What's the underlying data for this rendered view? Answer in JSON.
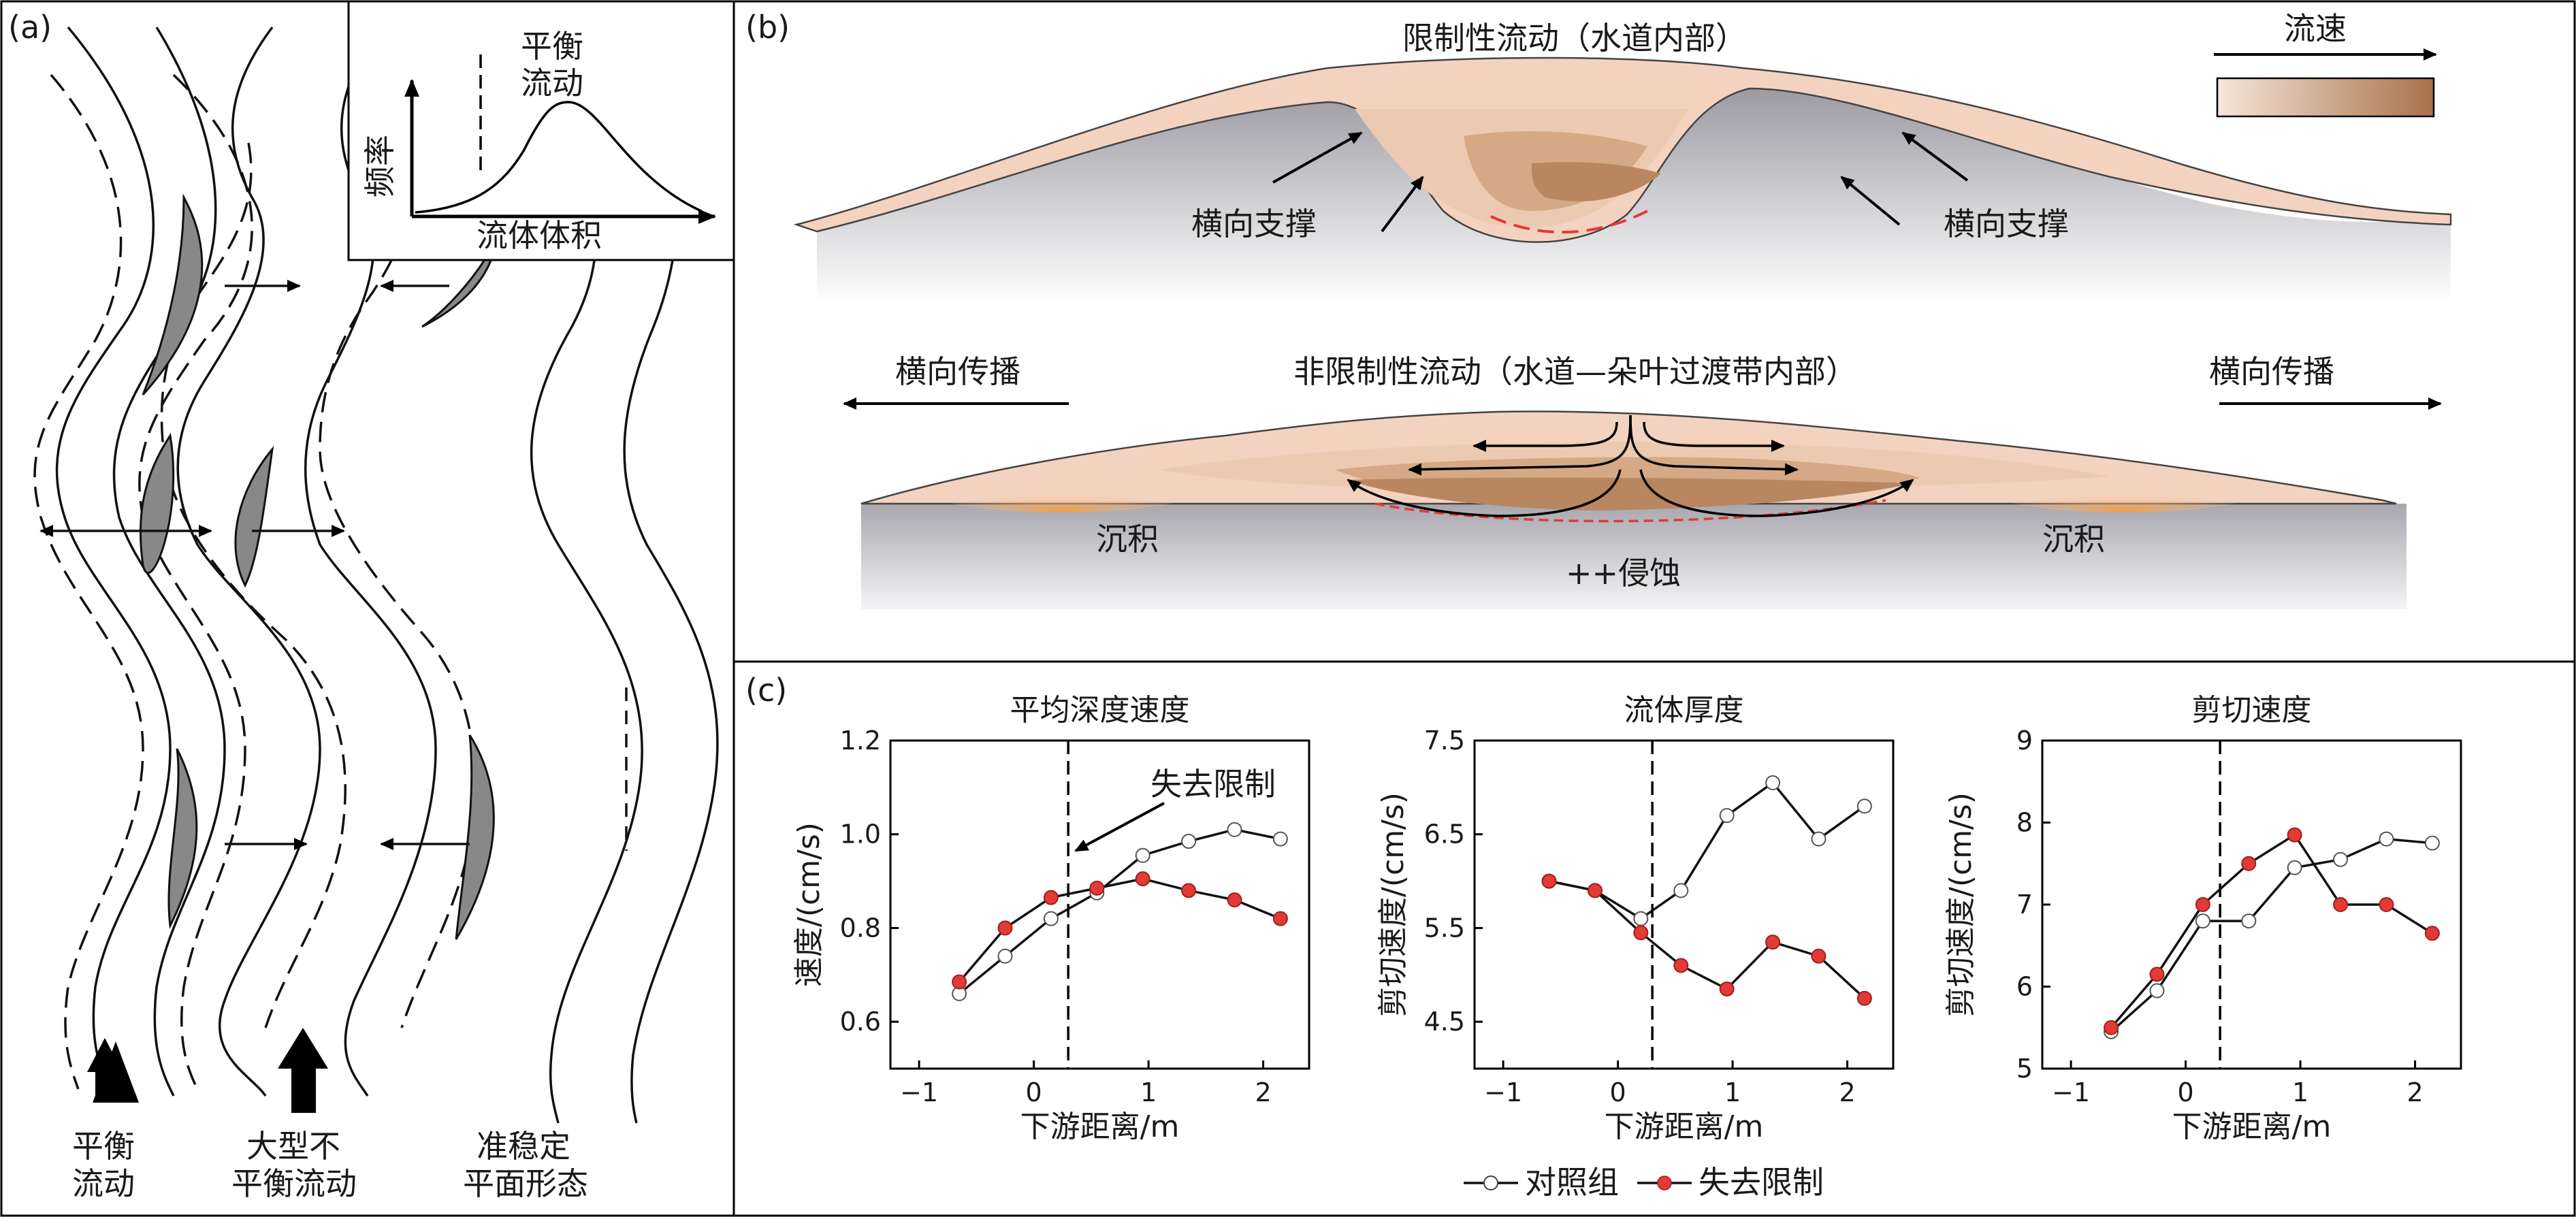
{
  "panels": {
    "a": {
      "letter": "(a)",
      "inset": {
        "peak_label_line1": "平衡",
        "peak_label_line2": "流动",
        "ylabel": "频率",
        "xlabel": "流体体积"
      },
      "bottom_labels": [
        {
          "line1": "平衡",
          "line2": "流动"
        },
        {
          "line1": "大型不",
          "line2": "平衡流动"
        },
        {
          "line1": "准稳定",
          "line2": "平面形态"
        }
      ]
    },
    "b": {
      "letter": "(b)",
      "top_title": "限制性流动（水道内部）",
      "legend_label": "流速",
      "lateral_support_left": "横向支撑",
      "lateral_support_right": "横向支撑",
      "bottom_title": "非限制性流动（水道—朵叶过渡带内部）",
      "spread_left": "横向传播",
      "spread_right": "横向传播",
      "deposit_left": "沉积",
      "deposit_right": "沉积",
      "erosion": "++侵蚀"
    },
    "c": {
      "letter": "(c)",
      "annotation": "失去限制",
      "legend": {
        "control": "对照组",
        "loss": "失去限制"
      }
    }
  },
  "colors": {
    "control_marker": "#ffffff",
    "loss_marker": "#e23a36",
    "erosion_dash": "#e23a36",
    "gray_bar": "#888888"
  },
  "chart_data": [
    {
      "type": "line",
      "title": "平均深度速度",
      "xlabel": "下游距离/m",
      "ylabel": "速度/(cm/s)",
      "xlim": [
        -1.25,
        2.4
      ],
      "ylim": [
        0.5,
        1.2
      ],
      "xticks": [
        -1,
        0,
        1,
        2
      ],
      "yticks": [
        0.6,
        0.8,
        1.0,
        1.2
      ],
      "ytick_labels": [
        "0.6",
        "0.8",
        "1.0",
        "1.2"
      ],
      "xtick_labels": [
        "−1",
        "0",
        "1",
        "2"
      ],
      "vline": 0.3,
      "series": [
        {
          "name": "对照组",
          "x": [
            -0.65,
            -0.25,
            0.15,
            0.55,
            0.95,
            1.35,
            1.75,
            2.15
          ],
          "y": [
            0.66,
            0.74,
            0.82,
            0.875,
            0.955,
            0.985,
            1.01,
            0.99
          ]
        },
        {
          "name": "失去限制",
          "x": [
            -0.65,
            -0.25,
            0.15,
            0.55,
            0.95,
            1.35,
            1.75,
            2.15
          ],
          "y": [
            0.685,
            0.8,
            0.865,
            0.885,
            0.905,
            0.88,
            0.86,
            0.82
          ]
        }
      ]
    },
    {
      "type": "line",
      "title": "流体厚度",
      "xlabel": "下游距离/m",
      "ylabel": "剪切速度/(cm/s)",
      "xlim": [
        -1.25,
        2.4
      ],
      "ylim": [
        4.0,
        7.5
      ],
      "xticks": [
        -1,
        0,
        1,
        2
      ],
      "yticks": [
        4.5,
        5.5,
        6.5,
        7.5
      ],
      "ytick_labels": [
        "4.5",
        "5.5",
        "6.5",
        "7.5"
      ],
      "xtick_labels": [
        "−1",
        "0",
        "1",
        "2"
      ],
      "vline": 0.3,
      "series": [
        {
          "name": "对照组",
          "x": [
            -0.6,
            -0.2,
            0.2,
            0.55,
            0.95,
            1.35,
            1.75,
            2.15
          ],
          "y": [
            6.0,
            5.9,
            5.6,
            5.9,
            6.7,
            7.05,
            6.45,
            6.8
          ]
        },
        {
          "name": "失去限制",
          "x": [
            -0.6,
            -0.2,
            0.2,
            0.55,
            0.95,
            1.35,
            1.75,
            2.15
          ],
          "y": [
            6.0,
            5.9,
            5.45,
            5.1,
            4.85,
            5.35,
            5.2,
            4.75
          ]
        }
      ]
    },
    {
      "type": "line",
      "title": "剪切速度",
      "xlabel": "下游距离/m",
      "ylabel": "剪切速度/(cm/s)",
      "xlim": [
        -1.25,
        2.4
      ],
      "ylim": [
        5,
        9
      ],
      "xticks": [
        -1,
        0,
        1,
        2
      ],
      "yticks": [
        5,
        6,
        7,
        8,
        9
      ],
      "ytick_labels": [
        "5",
        "6",
        "7",
        "8",
        "9"
      ],
      "xtick_labels": [
        "−1",
        "0",
        "1",
        "2"
      ],
      "vline": 0.3,
      "series": [
        {
          "name": "对照组",
          "x": [
            -0.65,
            -0.25,
            0.15,
            0.55,
            0.95,
            1.35,
            1.75,
            2.15
          ],
          "y": [
            5.45,
            5.95,
            6.8,
            6.8,
            7.45,
            7.55,
            7.8,
            7.75
          ]
        },
        {
          "name": "失去限制",
          "x": [
            -0.65,
            -0.25,
            0.15,
            0.55,
            0.95,
            1.35,
            1.75,
            2.15
          ],
          "y": [
            5.5,
            6.15,
            7.0,
            7.5,
            7.85,
            7.0,
            7.0,
            6.65
          ]
        }
      ]
    }
  ]
}
